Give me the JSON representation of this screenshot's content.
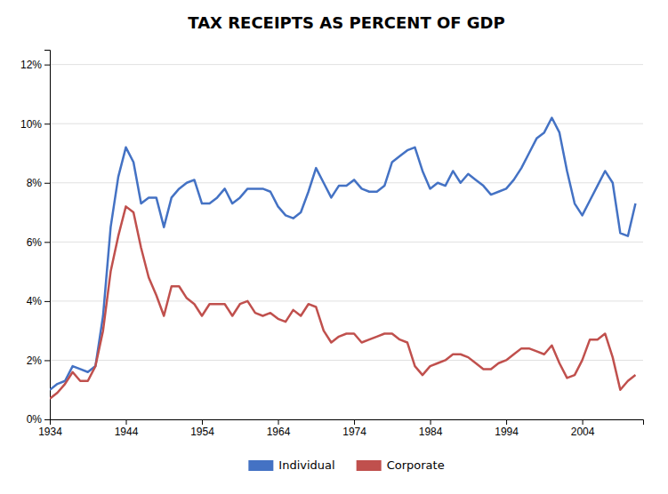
{
  "chart_data": {
    "type": "line",
    "title": "TAX RECEIPTS AS PERCENT OF GDP",
    "x": [
      1934,
      1935,
      1936,
      1937,
      1938,
      1939,
      1940,
      1941,
      1942,
      1943,
      1944,
      1945,
      1946,
      1947,
      1948,
      1949,
      1950,
      1951,
      1952,
      1953,
      1954,
      1955,
      1956,
      1957,
      1958,
      1959,
      1960,
      1961,
      1962,
      1963,
      1964,
      1965,
      1966,
      1967,
      1968,
      1969,
      1970,
      1971,
      1972,
      1973,
      1974,
      1975,
      1976,
      1977,
      1978,
      1979,
      1980,
      1981,
      1982,
      1983,
      1984,
      1985,
      1986,
      1987,
      1988,
      1989,
      1990,
      1991,
      1992,
      1993,
      1994,
      1995,
      1996,
      1997,
      1998,
      1999,
      2000,
      2001,
      2002,
      2003,
      2004,
      2005,
      2006,
      2007,
      2008,
      2009,
      2010,
      2011
    ],
    "series": [
      {
        "name": "Individual",
        "color": "#4472C4",
        "values": [
          1.0,
          1.2,
          1.3,
          1.8,
          1.7,
          1.6,
          1.8,
          3.5,
          6.5,
          8.2,
          9.2,
          8.7,
          7.3,
          7.5,
          7.5,
          6.5,
          7.5,
          7.8,
          8.0,
          8.1,
          7.3,
          7.3,
          7.5,
          7.8,
          7.3,
          7.5,
          7.8,
          7.8,
          7.8,
          7.7,
          7.2,
          6.9,
          6.8,
          7.0,
          7.7,
          8.5,
          8.0,
          7.5,
          7.9,
          7.9,
          8.1,
          7.8,
          7.7,
          7.7,
          7.9,
          8.7,
          8.9,
          9.1,
          9.2,
          8.4,
          7.8,
          8.0,
          7.9,
          8.4,
          8.0,
          8.3,
          8.1,
          7.9,
          7.6,
          7.7,
          7.8,
          8.1,
          8.5,
          9.0,
          9.5,
          9.7,
          10.2,
          9.7,
          8.4,
          7.3,
          6.9,
          7.4,
          7.9,
          8.4,
          8.0,
          6.3,
          6.2,
          7.3
        ]
      },
      {
        "name": "Corporate",
        "color": "#C0504D",
        "values": [
          0.7,
          0.9,
          1.2,
          1.6,
          1.3,
          1.3,
          1.8,
          3.0,
          5.0,
          6.2,
          7.2,
          7.0,
          5.8,
          4.8,
          4.2,
          3.5,
          4.5,
          4.5,
          4.1,
          3.9,
          3.5,
          3.9,
          3.9,
          3.9,
          3.5,
          3.9,
          4.0,
          3.6,
          3.5,
          3.6,
          3.4,
          3.3,
          3.7,
          3.5,
          3.9,
          3.8,
          3.0,
          2.6,
          2.8,
          2.9,
          2.9,
          2.6,
          2.7,
          2.8,
          2.9,
          2.9,
          2.7,
          2.6,
          1.8,
          1.5,
          1.8,
          1.9,
          2.0,
          2.2,
          2.2,
          2.1,
          1.9,
          1.7,
          1.7,
          1.9,
          2.0,
          2.2,
          2.4,
          2.4,
          2.3,
          2.2,
          2.5,
          1.9,
          1.4,
          1.5,
          2.0,
          2.7,
          2.7,
          2.9,
          2.1,
          1.0,
          1.3,
          1.5
        ]
      }
    ],
    "xlim": [
      1934,
      2012
    ],
    "xticks": [
      1934,
      1944,
      1954,
      1964,
      1974,
      1984,
      1994,
      2004
    ],
    "ylim": [
      0,
      12.5
    ],
    "yticks": [
      {
        "value": 0,
        "label": "0%"
      },
      {
        "value": 2,
        "label": "2%"
      },
      {
        "value": 4,
        "label": "4%"
      },
      {
        "value": 6,
        "label": "6%"
      },
      {
        "value": 8,
        "label": "8%"
      },
      {
        "value": 10,
        "label": "10%"
      },
      {
        "value": 12,
        "label": "12%"
      }
    ],
    "grid": true,
    "legend": "bottom"
  }
}
